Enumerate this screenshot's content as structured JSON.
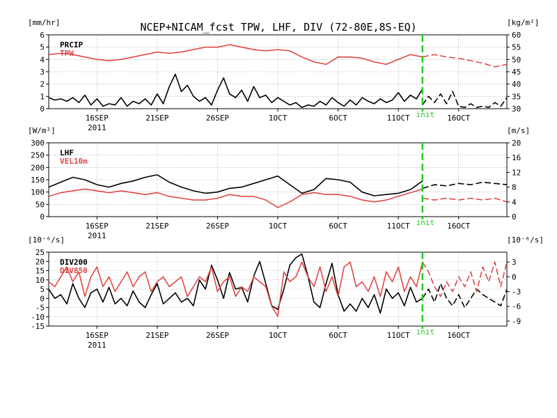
{
  "title": "NCEP+NICAM_fcst TPW, LHF, DIV (72-80E,8S-EQ)",
  "colors": {
    "black": "#000000",
    "red": "#e04848",
    "green": "#22cc22",
    "grid": "#888888"
  },
  "init_label": "init",
  "x_ticks": [
    {
      "day": 16,
      "line1": "16SEP",
      "line2": "2011"
    },
    {
      "day": 21,
      "line1": "21SEP",
      "line2": ""
    },
    {
      "day": 26,
      "line1": "26SEP",
      "line2": ""
    },
    {
      "day": 31,
      "line1": "1OCT",
      "line2": ""
    },
    {
      "day": 36,
      "line1": "6OCT",
      "line2": ""
    },
    {
      "day": 41,
      "line1": "11OCT",
      "line2": ""
    },
    {
      "day": 46,
      "line1": "16OCT",
      "line2": ""
    }
  ],
  "chart_data": [
    {
      "type": "line",
      "left_unit": "[mm/hr]",
      "right_unit": "[kg/m²]",
      "left_ticks": [
        "0",
        "1",
        "2",
        "3",
        "4",
        "5",
        "6"
      ],
      "right_ticks": [
        "30",
        "35",
        "40",
        "45",
        "50",
        "55",
        "60"
      ],
      "ylim_left": [
        0,
        6
      ],
      "ylim_right": [
        30,
        60
      ],
      "x_start": "2011-09-12",
      "x_end": "2011-10-20",
      "init": "2011-10-13",
      "series": [
        {
          "name": "PRCIP",
          "axis": "left",
          "color": "black",
          "x": [
            12,
            12.5,
            13,
            13.5,
            14,
            14.5,
            15,
            15.5,
            16,
            16.5,
            17,
            17.5,
            18,
            18.5,
            19,
            19.5,
            20,
            20.5,
            21,
            21.5,
            22,
            22.5,
            23,
            23.5,
            24,
            24.5,
            25,
            25.5,
            26,
            26.5,
            27,
            27.5,
            28,
            28.5,
            29,
            29.5,
            30,
            30.5,
            31,
            31.5,
            32,
            32.5,
            33,
            33.5,
            34,
            34.5,
            35,
            35.5,
            36,
            36.5,
            37,
            37.5,
            38,
            38.5,
            39,
            39.5,
            40,
            40.5,
            41,
            41.5,
            42,
            42.5,
            43
          ],
          "values": [
            0.9,
            0.7,
            0.8,
            0.6,
            0.9,
            0.5,
            1.1,
            0.3,
            0.8,
            0.2,
            0.4,
            0.3,
            0.9,
            0.2,
            0.6,
            0.4,
            0.8,
            0.3,
            1.2,
            0.4,
            1.8,
            2.8,
            1.4,
            1.9,
            1.0,
            0.6,
            0.9,
            0.3,
            1.5,
            2.5,
            1.2,
            0.9,
            1.5,
            0.6,
            1.8,
            0.9,
            1.1,
            0.5,
            0.9,
            0.6,
            0.3,
            0.5,
            0.1,
            0.3,
            0.2,
            0.6,
            0.3,
            0.9,
            0.5,
            0.2,
            0.7,
            0.3,
            0.9,
            0.6,
            0.4,
            0.8,
            0.5,
            0.7,
            1.3,
            0.6,
            1.1,
            0.8,
            1.6
          ]
        },
        {
          "name": "PRCIP",
          "axis": "left",
          "color": "black",
          "dashed": true,
          "x": [
            43,
            43.5,
            44,
            44.5,
            45,
            45.5,
            46,
            46.5,
            47,
            47.5,
            48,
            48.5,
            49,
            49.5,
            50
          ],
          "values": [
            0.3,
            1.0,
            0.5,
            1.2,
            0.4,
            1.4,
            0.2,
            0.1,
            0.4,
            0.1,
            0.2,
            0.1,
            0.5,
            0.2,
            0.9
          ]
        },
        {
          "name": "TPW",
          "axis": "right",
          "color": "red",
          "x": [
            12,
            13,
            14,
            15,
            16,
            17,
            18,
            19,
            20,
            21,
            22,
            23,
            24,
            25,
            26,
            27,
            28,
            29,
            30,
            31,
            32,
            33,
            34,
            35,
            36,
            37,
            38,
            39,
            40,
            41,
            42,
            43
          ],
          "values": [
            52,
            52.5,
            52,
            51,
            50,
            49.5,
            50,
            51,
            52,
            53,
            52.5,
            53,
            54,
            55,
            55,
            56,
            55,
            54,
            53.5,
            54,
            53.5,
            51,
            49,
            48,
            51,
            51,
            50.5,
            49,
            48,
            50,
            52,
            51
          ]
        },
        {
          "name": "TPW",
          "axis": "right",
          "color": "red",
          "dashed": true,
          "x": [
            43,
            44,
            45,
            46,
            47,
            48,
            49,
            50
          ],
          "values": [
            51,
            52,
            51,
            50.5,
            49.5,
            48.5,
            47,
            48
          ]
        }
      ]
    },
    {
      "type": "line",
      "left_unit": "[W/m²]",
      "right_unit": "[m/s]",
      "left_ticks": [
        "0",
        "50",
        "100",
        "150",
        "200",
        "250",
        "300"
      ],
      "right_ticks": [
        "0",
        "4",
        "8",
        "12",
        "16",
        "20"
      ],
      "ylim_left": [
        0,
        300
      ],
      "ylim_right": [
        0,
        20
      ],
      "x_start": "2011-09-12",
      "x_end": "2011-10-20",
      "init": "2011-10-13",
      "series": [
        {
          "name": "LHF",
          "axis": "left",
          "color": "black",
          "x": [
            12,
            13,
            14,
            15,
            16,
            17,
            18,
            19,
            20,
            21,
            22,
            23,
            24,
            25,
            26,
            27,
            28,
            29,
            30,
            31,
            32,
            33,
            34,
            35,
            36,
            37,
            38,
            39,
            40,
            41,
            42,
            43
          ],
          "values": [
            120,
            140,
            160,
            150,
            130,
            120,
            135,
            145,
            160,
            170,
            140,
            120,
            105,
            95,
            100,
            115,
            120,
            135,
            150,
            165,
            130,
            95,
            110,
            155,
            150,
            140,
            100,
            85,
            90,
            95,
            110,
            145
          ]
        },
        {
          "name": "LHF",
          "axis": "left",
          "color": "black",
          "dashed": true,
          "x": [
            43,
            44,
            45,
            46,
            47,
            48,
            49,
            50
          ],
          "values": [
            115,
            130,
            125,
            135,
            130,
            140,
            135,
            130
          ]
        },
        {
          "name": "VEL10m",
          "axis": "right",
          "color": "red",
          "x": [
            12,
            13,
            14,
            15,
            16,
            17,
            18,
            19,
            20,
            21,
            22,
            23,
            24,
            25,
            26,
            27,
            28,
            29,
            30,
            31,
            32,
            33,
            34,
            35,
            36,
            37,
            38,
            39,
            40,
            41,
            42,
            43
          ],
          "values": [
            5.5,
            6.5,
            7,
            7.5,
            7,
            6.5,
            7,
            6.5,
            6,
            6.5,
            5.5,
            5,
            4.5,
            4.5,
            5,
            6,
            5.5,
            5.5,
            4.5,
            2.5,
            4,
            6,
            6.5,
            6,
            6,
            5.5,
            4.5,
            4,
            4.5,
            5.5,
            6.5,
            7.5
          ]
        },
        {
          "name": "VEL10m",
          "axis": "right",
          "color": "red",
          "dashed": true,
          "x": [
            43,
            44,
            45,
            46,
            47,
            48,
            49,
            50
          ],
          "values": [
            5,
            4.5,
            5,
            4.5,
            5,
            4.5,
            5,
            4
          ]
        }
      ]
    },
    {
      "type": "line",
      "left_unit": "[10⁻⁶/s]",
      "right_unit": "[10⁻⁶/s]",
      "left_ticks": [
        "-15",
        "-10",
        "-5",
        "0",
        "5",
        "10",
        "15",
        "20",
        "25"
      ],
      "right_ticks": [
        "-9",
        "-6",
        "-3",
        "0",
        "3"
      ],
      "ylim_left": [
        -15,
        25
      ],
      "ylim_right": [
        -10,
        5
      ],
      "x_start": "2011-09-12",
      "x_end": "2011-10-20",
      "init": "2011-10-13",
      "series": [
        {
          "name": "DIV200",
          "axis": "left",
          "color": "black",
          "x": [
            12,
            12.5,
            13,
            13.5,
            14,
            14.5,
            15,
            15.5,
            16,
            16.5,
            17,
            17.5,
            18,
            18.5,
            19,
            19.5,
            20,
            20.5,
            21,
            21.5,
            22,
            22.5,
            23,
            23.5,
            24,
            24.5,
            25,
            25.5,
            26,
            26.5,
            27,
            27.5,
            28,
            28.5,
            29,
            29.5,
            30,
            30.5,
            31,
            31.5,
            32,
            32.5,
            33,
            33.5,
            34,
            34.5,
            35,
            35.5,
            36,
            36.5,
            37,
            37.5,
            38,
            38.5,
            39,
            39.5,
            40,
            40.5,
            41,
            41.5,
            42,
            42.5,
            43
          ],
          "values": [
            5,
            0,
            2,
            -3,
            8,
            0,
            -5,
            3,
            5,
            -2,
            6,
            -3,
            0,
            -4,
            4,
            -2,
            -5,
            2,
            8,
            -3,
            0,
            3,
            -2,
            0,
            -4,
            10,
            5,
            18,
            10,
            0,
            14,
            5,
            6,
            -2,
            12,
            20,
            8,
            -4,
            -6,
            5,
            18,
            22,
            24,
            12,
            -2,
            -5,
            8,
            19,
            2,
            -7,
            -3,
            -7,
            0,
            -5,
            2,
            -8,
            5,
            0,
            3,
            -4,
            6,
            -2,
            0
          ]
        },
        {
          "name": "DIV200",
          "axis": "left",
          "color": "black",
          "dashed": true,
          "x": [
            43,
            43.5,
            44,
            44.5,
            45,
            45.5,
            46,
            46.5,
            47,
            47.5,
            48,
            48.5,
            49,
            49.5,
            50
          ],
          "values": [
            0,
            5,
            -2,
            8,
            0,
            -4,
            2,
            -5,
            0,
            5,
            2,
            0,
            -2,
            -4,
            5
          ]
        },
        {
          "name": "DIV850",
          "axis": "right",
          "color": "red",
          "x": [
            12,
            12.5,
            13,
            13.5,
            14,
            14.5,
            15,
            15.5,
            16,
            16.5,
            17,
            17.5,
            18,
            18.5,
            19,
            19.5,
            20,
            20.5,
            21,
            21.5,
            22,
            22.5,
            23,
            23.5,
            24,
            24.5,
            25,
            25.5,
            26,
            26.5,
            27,
            27.5,
            28,
            28.5,
            29,
            29.5,
            30,
            30.5,
            31,
            31.5,
            32,
            32.5,
            33,
            33.5,
            34,
            34.5,
            35,
            35.5,
            36,
            36.5,
            37,
            37.5,
            38,
            38.5,
            39,
            39.5,
            40,
            40.5,
            41,
            41.5,
            42,
            42.5,
            43
          ],
          "values": [
            -1,
            -2,
            0,
            2,
            -1,
            1,
            -4,
            0,
            2,
            -2,
            0,
            -3,
            -1,
            1,
            -2,
            0,
            1,
            -3,
            -1,
            0,
            -2,
            -1,
            0,
            -4,
            -2,
            0,
            -1,
            2,
            -3,
            -1,
            0,
            -4,
            -2,
            -3,
            0,
            -1,
            -2,
            -6,
            -8,
            1,
            -1,
            0,
            3,
            0,
            -2,
            2,
            -3,
            0,
            -4,
            2,
            3,
            -2,
            -1,
            -3,
            0,
            -4,
            1,
            -1,
            2,
            -3,
            0,
            -2,
            3
          ]
        },
        {
          "name": "DIV850",
          "axis": "right",
          "color": "red",
          "dashed": true,
          "x": [
            43,
            43.5,
            44,
            44.5,
            45,
            45.5,
            46,
            46.5,
            47,
            47.5,
            48,
            48.5,
            49,
            49.5,
            50
          ],
          "values": [
            3,
            1,
            -2,
            -4,
            -1,
            -3,
            0,
            -2,
            1,
            -3,
            2,
            -1,
            3,
            -2,
            3
          ]
        }
      ]
    }
  ],
  "legends": [
    {
      "items": [
        {
          "name": "PRCIP",
          "color": "black"
        },
        {
          "name": "TPW",
          "color": "red"
        }
      ]
    },
    {
      "items": [
        {
          "name": "LHF",
          "color": "black"
        },
        {
          "name": "VEL10m",
          "color": "red"
        }
      ]
    },
    {
      "items": [
        {
          "name": "DIV200",
          "color": "black"
        },
        {
          "name": "DIV850",
          "color": "red"
        }
      ]
    }
  ]
}
